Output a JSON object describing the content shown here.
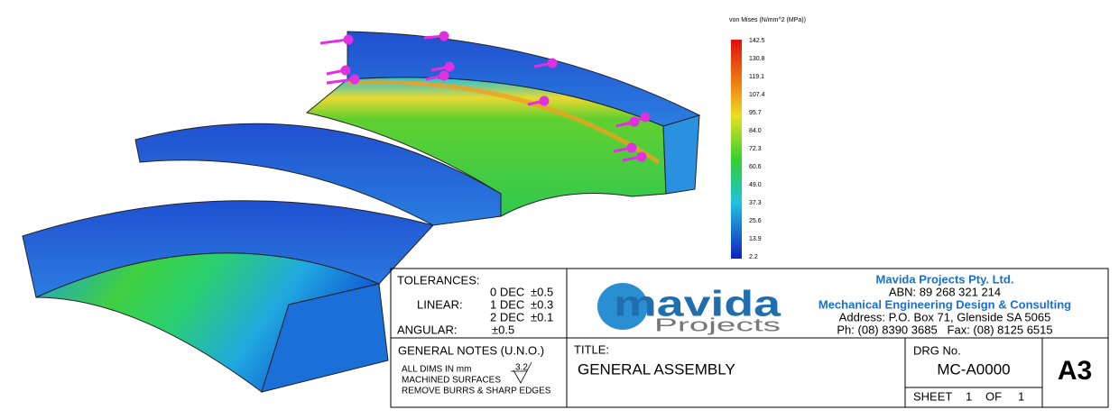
{
  "legend": {
    "title": "von Mises (N/mm^2 (MPa))",
    "ticks": [
      "142.5",
      "130.8",
      "119.1",
      "107.4",
      "95.7",
      "84.0",
      "72.3",
      "60.6",
      "49.0",
      "37.3",
      "25.6",
      "13.9",
      "2.2"
    ]
  },
  "title_block": {
    "tolerances": {
      "heading": "TOLERANCES:",
      "linear": "LINEAR:",
      "angular": "ANGULAR:",
      "angular_value": "±0.5",
      "rows": [
        [
          "0 DEC",
          "±0.5"
        ],
        [
          "1 DEC",
          "±0.3"
        ],
        [
          "2 DEC",
          "±0.1"
        ]
      ]
    },
    "logo": {
      "word": "mavida",
      "sub": "Projects"
    },
    "company": {
      "name": "Mavida Projects Pty. Ltd.",
      "abn": "ABN: 89 268 321 214",
      "tagline": "Mechanical Engineering Design & Consulting",
      "address": "Address: P.O. Box 71, Glenside SA  5065",
      "phone": "Ph: (08) 8390 3685   Fax: (08) 8125 6515"
    },
    "notes": {
      "heading": "GENERAL NOTES (U.N.O.)",
      "dims": "ALL DIMS IN mm",
      "roughness": "3.2",
      "machined": "MACHINED SURFACES",
      "burrs": "REMOVE BURRS & SHARP EDGES"
    },
    "title_label": "TITLE:",
    "title": "GENERAL ASSEMBLY",
    "drg_label": "DRG No.",
    "drg": "MC-A0000",
    "size": "A3",
    "sheet_label": "SHEET",
    "sheet": "1",
    "of_label": "OF",
    "sheets": "1"
  }
}
